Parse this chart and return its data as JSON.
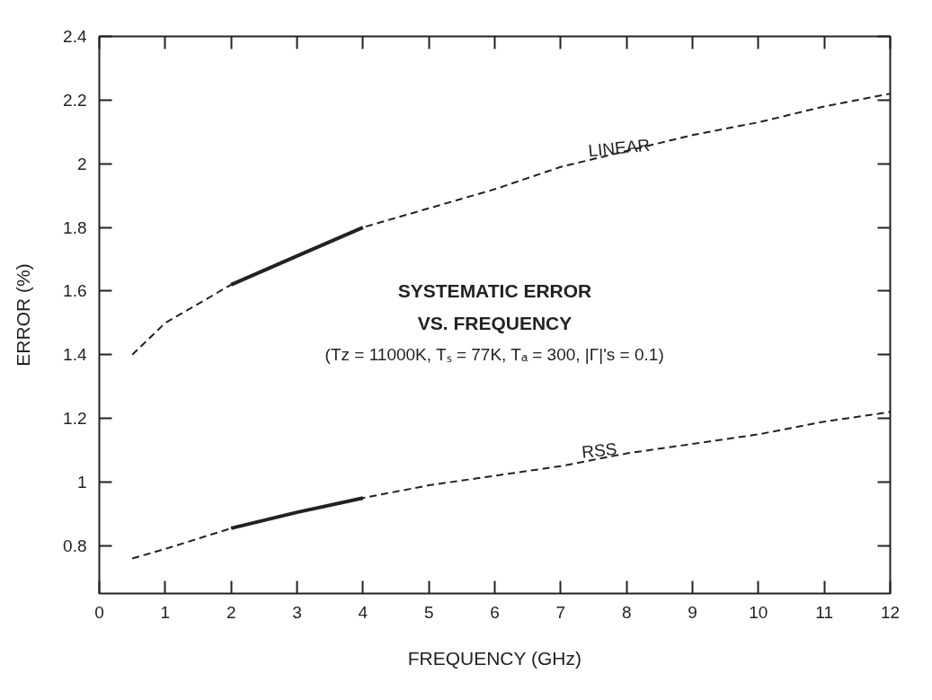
{
  "chart_data": {
    "type": "line",
    "xlabel": "FREQUENCY (GHz)",
    "ylabel": "ERROR (%)",
    "xlim": [
      0,
      12
    ],
    "ylim": [
      0.65,
      2.4
    ],
    "xticks": [
      0,
      1,
      2,
      3,
      4,
      5,
      6,
      7,
      8,
      9,
      10,
      11,
      12
    ],
    "yticks": [
      0.8,
      1,
      1.2,
      1.4,
      1.6,
      1.8,
      2,
      2.2,
      2.4
    ],
    "grid": false,
    "marker": "none",
    "series": [
      {
        "color": "#222222",
        "line_style": "dashed",
        "x": [
          0.5,
          1,
          2,
          3,
          4,
          5,
          6,
          7,
          8,
          9,
          10,
          11,
          12
        ],
        "values": [
          1.4,
          1.5,
          1.62,
          1.71,
          1.8,
          1.86,
          1.92,
          1.99,
          2.04,
          2.09,
          2.13,
          2.18,
          2.22
        ]
      },
      {
        "color": "#222222",
        "line_style": "solid",
        "x": [
          2,
          3,
          4
        ],
        "values": [
          1.62,
          1.71,
          1.8
        ]
      },
      {
        "color": "#222222",
        "line_style": "dashed",
        "x": [
          0.5,
          1,
          2,
          3,
          4,
          5,
          6,
          7,
          8,
          9,
          10,
          11,
          12
        ],
        "values": [
          0.76,
          0.79,
          0.855,
          0.905,
          0.95,
          0.99,
          1.02,
          1.05,
          1.09,
          1.12,
          1.15,
          1.19,
          1.22
        ]
      },
      {
        "color": "#222222",
        "line_style": "solid",
        "x": [
          2,
          3,
          4
        ],
        "values": [
          0.855,
          0.905,
          0.95
        ]
      }
    ],
    "annotations": [
      {
        "text": "LINEAR",
        "x": 7.9,
        "y": 2.02
      },
      {
        "text": "RSS",
        "x": 7.6,
        "y": 1.07
      },
      "SYSTEMATIC ERROR",
      "VS. FREQUENCY",
      "(Tz = 11000K, Tₛ = 77K, Tₐ = 300, |Γ|'s = 0.1)"
    ]
  }
}
